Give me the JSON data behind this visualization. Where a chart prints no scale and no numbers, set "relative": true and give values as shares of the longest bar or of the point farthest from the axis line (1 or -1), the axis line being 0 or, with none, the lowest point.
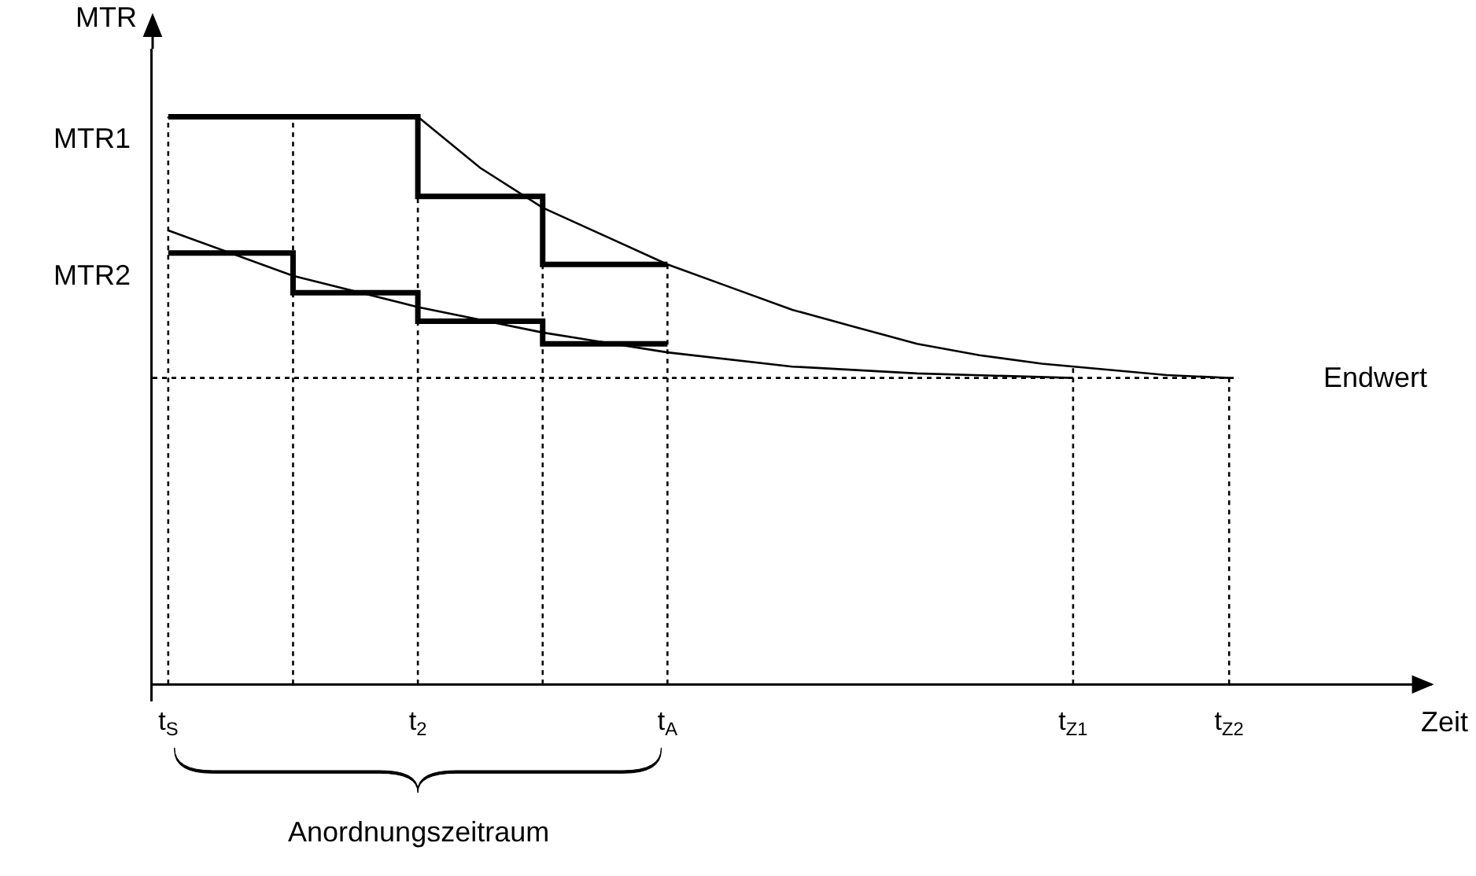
{
  "chart_data": {
    "type": "line",
    "relative": true,
    "ylabel": "MTR",
    "xlabel": "Zeit",
    "categories": [
      "t$_{S}$",
      null,
      null,
      null,
      null,
      null,
      null,
      null,
      "t$_{2}$",
      null,
      null,
      null,
      null,
      null,
      null,
      null,
      "t$_{A}$",
      null,
      null,
      null,
      null,
      null,
      null,
      null,
      null,
      null,
      null,
      null,
      null,
      "t$_{Z1}$",
      null,
      null,
      null,
      null,
      "t$_{Z2}$",
      null,
      null,
      null,
      null,
      null,
      null
    ],
    "series": [
      {
        "name": "MTR1",
        "type": "step",
        "color": "#000000",
        "values": [
          1.0,
          null,
          null,
          null,
          null,
          null,
          null,
          null,
          0.86,
          null,
          null,
          null,
          0.74,
          null,
          null,
          null,
          0.74,
          null,
          null,
          null,
          null,
          null,
          null,
          null,
          null,
          null,
          null,
          null,
          null,
          null,
          null,
          null,
          null,
          null,
          null,
          null,
          null,
          null,
          null,
          null,
          null
        ]
      },
      {
        "color": "#000000",
        "values": [
          null,
          null,
          null,
          null,
          null,
          null,
          null,
          null,
          1.0,
          null,
          0.91,
          null,
          0.84,
          null,
          0.79,
          null,
          0.74,
          null,
          0.7,
          null,
          0.66,
          null,
          0.63,
          null,
          0.6,
          null,
          0.58,
          null,
          0.565,
          null,
          0.555,
          null,
          0.545,
          null,
          0.54,
          null,
          null,
          null,
          null,
          null,
          null
        ]
      },
      {
        "name": "MTR2",
        "type": "step",
        "color": "#000000",
        "values": [
          0.76,
          null,
          null,
          null,
          0.69,
          null,
          null,
          null,
          0.64,
          null,
          null,
          null,
          0.6,
          null,
          null,
          null,
          0.6,
          null,
          null,
          null,
          null,
          null,
          null,
          null,
          null,
          null,
          null,
          null,
          null,
          null,
          null,
          null,
          null,
          null,
          null,
          null,
          null,
          null,
          null,
          null,
          null
        ]
      },
      {
        "color": "#000000",
        "values": [
          0.8,
          null,
          null,
          null,
          0.72,
          null,
          null,
          null,
          0.665,
          null,
          null,
          null,
          0.62,
          null,
          null,
          null,
          0.585,
          null,
          null,
          null,
          0.56,
          null,
          null,
          null,
          0.548,
          null,
          null,
          null,
          null,
          0.54,
          null,
          null,
          null,
          null,
          null,
          null,
          null,
          null,
          null,
          null,
          null
        ]
      }
    ],
    "ref_lines": [
      {
        "axis": "y",
        "value": 0.54,
        "label": "Endwert",
        "line_style": "dotted"
      }
    ],
    "annotations": [
      "Anordnungszeitraum"
    ],
    "marker": "none",
    "legend": false,
    "grid": "x"
  }
}
